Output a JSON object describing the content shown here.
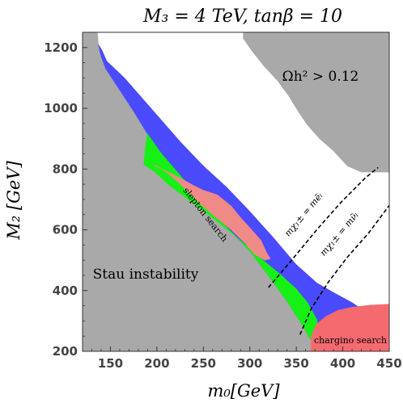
{
  "chart_data": {
    "type": "area",
    "title": "M₃ = 4 TeV, tanβ = 10",
    "xlabel": "m₀[GeV]",
    "ylabel": "M₂ [GeV]",
    "xlim": [
      120,
      450
    ],
    "ylim": [
      200,
      1250
    ],
    "x_ticks": [
      150,
      200,
      250,
      300,
      350,
      400,
      450
    ],
    "y_ticks": [
      200,
      400,
      600,
      800,
      1000,
      1200
    ],
    "grid": false,
    "colors": {
      "excluded": "#a9a9a9",
      "blue_band": "#4a4aff",
      "green_band": "#16f016",
      "slepton": "#f08a86",
      "chargino": "#f46a6f"
    },
    "regions": [
      {
        "name": "stau-instability",
        "label": "Stau instability",
        "color": "#a9a9a9",
        "points": [
          [
            120,
            1250
          ],
          [
            136,
            1250
          ],
          [
            137,
            1210
          ],
          [
            140,
            1170
          ],
          [
            145,
            1130
          ],
          [
            160,
            1060
          ],
          [
            175,
            990
          ],
          [
            190,
            915
          ],
          [
            205,
            850
          ],
          [
            222,
            790
          ],
          [
            240,
            725
          ],
          [
            258,
            660
          ],
          [
            278,
            600
          ],
          [
            300,
            530
          ],
          [
            320,
            450
          ],
          [
            340,
            365
          ],
          [
            358,
            280
          ],
          [
            365,
            240
          ],
          [
            370,
            200
          ],
          [
            120,
            200
          ]
        ]
      },
      {
        "name": "relic-overabundance",
        "label": "Ωh² > 0.12",
        "color": "#a9a9a9",
        "points": [
          [
            293,
            1250
          ],
          [
            450,
            1250
          ],
          [
            450,
            790
          ],
          [
            420,
            790
          ],
          [
            405,
            810
          ],
          [
            390,
            860
          ],
          [
            375,
            900
          ],
          [
            362,
            945
          ],
          [
            352,
            990
          ],
          [
            342,
            1040
          ],
          [
            330,
            1090
          ],
          [
            315,
            1140
          ],
          [
            302,
            1190
          ],
          [
            293,
            1230
          ]
        ]
      },
      {
        "name": "blue-band",
        "label": "",
        "color": "#4a4aff",
        "points": [
          [
            137,
            1210
          ],
          [
            141,
            1190
          ],
          [
            146,
            1155
          ],
          [
            165,
            1100
          ],
          [
            185,
            1030
          ],
          [
            205,
            960
          ],
          [
            225,
            890
          ],
          [
            250,
            810
          ],
          [
            275,
            740
          ],
          [
            300,
            660
          ],
          [
            325,
            575
          ],
          [
            350,
            485
          ],
          [
            372,
            425
          ],
          [
            392,
            390
          ],
          [
            410,
            360
          ],
          [
            420,
            340
          ],
          [
            420,
            270
          ],
          [
            400,
            265
          ],
          [
            385,
            272
          ],
          [
            372,
            290
          ],
          [
            365,
            240
          ],
          [
            358,
            280
          ],
          [
            340,
            365
          ],
          [
            320,
            450
          ],
          [
            300,
            530
          ],
          [
            278,
            600
          ],
          [
            258,
            660
          ],
          [
            240,
            725
          ],
          [
            222,
            790
          ],
          [
            205,
            850
          ],
          [
            190,
            915
          ],
          [
            175,
            990
          ],
          [
            160,
            1060
          ],
          [
            145,
            1130
          ],
          [
            140,
            1170
          ]
        ]
      },
      {
        "name": "green-band",
        "label": "",
        "color": "#16f016",
        "points": [
          [
            186,
            815
          ],
          [
            198,
            790
          ],
          [
            214,
            745
          ],
          [
            238,
            690
          ],
          [
            262,
            635
          ],
          [
            290,
            565
          ],
          [
            312,
            505
          ],
          [
            334,
            450
          ],
          [
            350,
            405
          ],
          [
            362,
            360
          ],
          [
            372,
            305
          ],
          [
            374,
            262
          ],
          [
            368,
            235
          ],
          [
            365,
            240
          ],
          [
            358,
            280
          ],
          [
            340,
            365
          ],
          [
            320,
            450
          ],
          [
            300,
            530
          ],
          [
            278,
            600
          ],
          [
            258,
            660
          ],
          [
            240,
            725
          ],
          [
            222,
            790
          ],
          [
            205,
            850
          ],
          [
            190,
            915
          ],
          [
            188,
            880
          ]
        ]
      },
      {
        "name": "slepton-search-region",
        "label": "slepton search",
        "color": "#f08a86",
        "points": [
          [
            197,
            812
          ],
          [
            212,
            790
          ],
          [
            228,
            765
          ],
          [
            240,
            745
          ],
          [
            250,
            730
          ],
          [
            265,
            715
          ],
          [
            280,
            678
          ],
          [
            290,
            640
          ],
          [
            302,
            600
          ],
          [
            312,
            565
          ],
          [
            318,
            525
          ],
          [
            322,
            505
          ],
          [
            316,
            500
          ],
          [
            305,
            520
          ],
          [
            295,
            555
          ],
          [
            290,
            570
          ],
          [
            280,
            600
          ],
          [
            270,
            625
          ],
          [
            258,
            655
          ],
          [
            245,
            690
          ],
          [
            232,
            730
          ],
          [
            220,
            765
          ],
          [
            210,
            790
          ],
          [
            200,
            810
          ]
        ]
      },
      {
        "name": "chargino-search-region",
        "label": "chargino search",
        "color": "#f46a6f",
        "points": [
          [
            450,
            355
          ],
          [
            430,
            352
          ],
          [
            410,
            345
          ],
          [
            395,
            335
          ],
          [
            382,
            315
          ],
          [
            372,
            290
          ],
          [
            368,
            265
          ],
          [
            366,
            245
          ],
          [
            366,
            200
          ],
          [
            450,
            200
          ]
        ]
      }
    ],
    "curves": [
      {
        "name": "mass-contour-eL",
        "label": "mχ₁± = mẽₗ",
        "style": "dashed",
        "color": "#000000",
        "x": [
          320,
          345,
          372,
          398,
          424,
          438
        ],
        "y": [
          410,
          500,
          600,
          690,
          770,
          805
        ]
      },
      {
        "name": "mass-contour-nuL",
        "label": "mχ₁± = mν̃ₗ",
        "style": "dashed",
        "color": "#000000",
        "x": [
          354,
          366,
          385,
          405,
          428,
          450
        ],
        "y": [
          255,
          340,
          430,
          510,
          590,
          680
        ]
      }
    ]
  }
}
